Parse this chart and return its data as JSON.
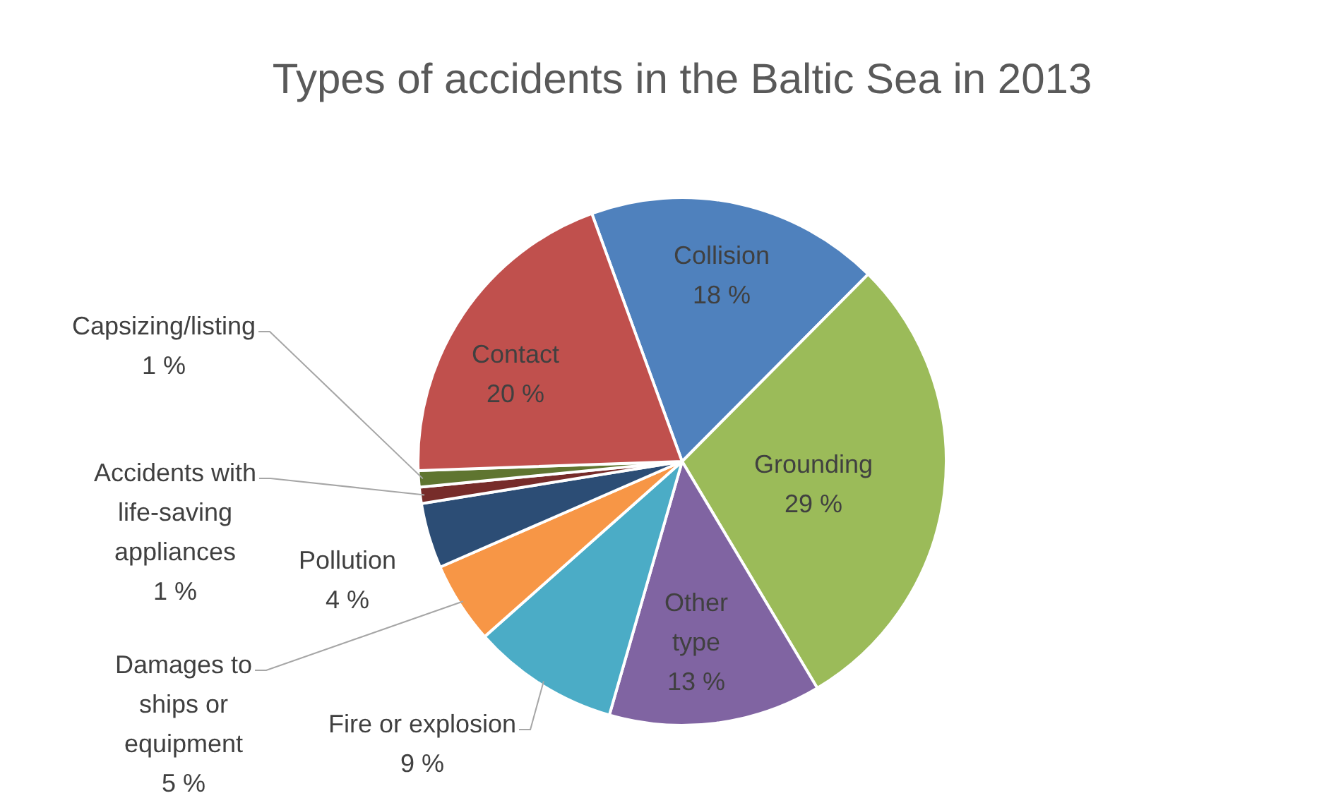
{
  "chart_data": {
    "type": "pie",
    "title": "Types of accidents in the Baltic Sea in 2013",
    "categories": [
      "Collision",
      "Grounding",
      "Other type",
      "Fire or explosion",
      "Damages to ships or equipment",
      "Pollution",
      "Accidents with life-saving appliances",
      "Capsizing/listing",
      "Contact"
    ],
    "values": [
      18,
      29,
      13,
      9,
      5,
      4,
      1,
      1,
      20
    ],
    "colors": [
      "#4f81bd",
      "#9bbb59",
      "#8064a2",
      "#4bacc6",
      "#f79646",
      "#2c4d75",
      "#772c2a",
      "#5f7530",
      "#c0504d"
    ],
    "value_labels": [
      "18 %",
      "29 %",
      "13 %",
      "9 %",
      "5 %",
      "4 %",
      "1 %",
      "1 %",
      "20 %"
    ]
  }
}
